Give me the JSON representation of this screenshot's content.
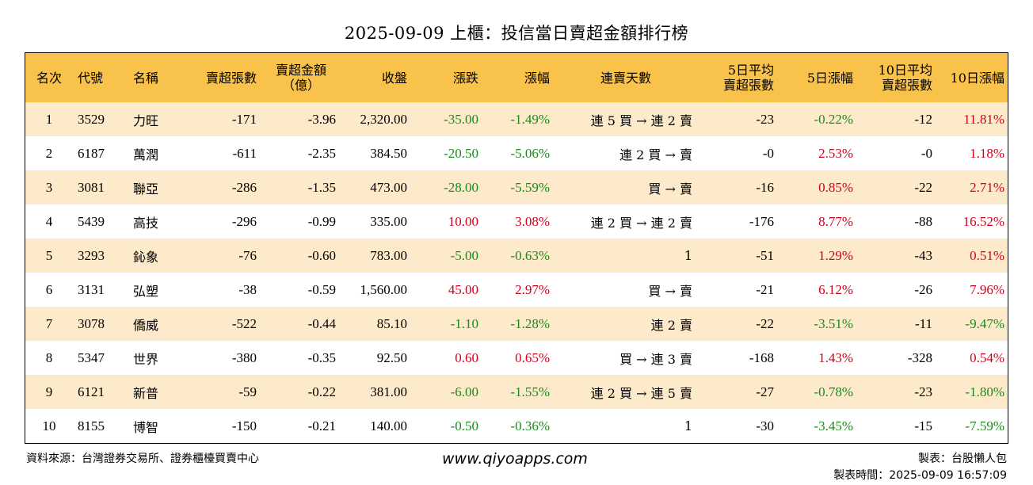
{
  "title": "2025-09-09 上櫃：投信當日賣超金額排行榜",
  "headers": {
    "rank": "名次",
    "code": "代號",
    "name": "名稱",
    "sell_lots": "賣超張數",
    "sell_amount_l1": "賣超金額",
    "sell_amount_l2": "（億）",
    "close": "收盤",
    "change": "漲跌",
    "pct": "漲幅",
    "streak": "連賣天數",
    "avg5_l1": "5日平均",
    "avg5_l2": "賣超張數",
    "pct5": "5日漲幅",
    "avg10_l1": "10日平均",
    "avg10_l2": "賣超張數",
    "pct10": "10日漲幅"
  },
  "rows": [
    {
      "rank": "1",
      "code": "3529",
      "name": "力旺",
      "lots": "-171",
      "amount": "-3.96",
      "close": "2,320.00",
      "change": "-35.00",
      "pct": "-1.49%",
      "streak": "連 5 買 → 連 2 賣",
      "avg5": "-23",
      "pct5": "-0.22%",
      "avg10": "-12",
      "pct10": "11.81%"
    },
    {
      "rank": "2",
      "code": "6187",
      "name": "萬潤",
      "lots": "-611",
      "amount": "-2.35",
      "close": "384.50",
      "change": "-20.50",
      "pct": "-5.06%",
      "streak": "連 2 買 → 賣",
      "avg5": "-0",
      "pct5": "2.53%",
      "avg10": "-0",
      "pct10": "1.18%"
    },
    {
      "rank": "3",
      "code": "3081",
      "name": "聯亞",
      "lots": "-286",
      "amount": "-1.35",
      "close": "473.00",
      "change": "-28.00",
      "pct": "-5.59%",
      "streak": "買 → 賣",
      "avg5": "-16",
      "pct5": "0.85%",
      "avg10": "-22",
      "pct10": "2.71%"
    },
    {
      "rank": "4",
      "code": "5439",
      "name": "高技",
      "lots": "-296",
      "amount": "-0.99",
      "close": "335.00",
      "change": "10.00",
      "pct": "3.08%",
      "streak": "連 2 買 → 連 2 賣",
      "avg5": "-176",
      "pct5": "8.77%",
      "avg10": "-88",
      "pct10": "16.52%"
    },
    {
      "rank": "5",
      "code": "3293",
      "name": "鈊象",
      "lots": "-76",
      "amount": "-0.60",
      "close": "783.00",
      "change": "-5.00",
      "pct": "-0.63%",
      "streak": "1",
      "avg5": "-51",
      "pct5": "1.29%",
      "avg10": "-43",
      "pct10": "0.51%"
    },
    {
      "rank": "6",
      "code": "3131",
      "name": "弘塑",
      "lots": "-38",
      "amount": "-0.59",
      "close": "1,560.00",
      "change": "45.00",
      "pct": "2.97%",
      "streak": "買 → 賣",
      "avg5": "-21",
      "pct5": "6.12%",
      "avg10": "-26",
      "pct10": "7.96%"
    },
    {
      "rank": "7",
      "code": "3078",
      "name": "僑威",
      "lots": "-522",
      "amount": "-0.44",
      "close": "85.10",
      "change": "-1.10",
      "pct": "-1.28%",
      "streak": "連 2 賣",
      "avg5": "-22",
      "pct5": "-3.51%",
      "avg10": "-11",
      "pct10": "-9.47%"
    },
    {
      "rank": "8",
      "code": "5347",
      "name": "世界",
      "lots": "-380",
      "amount": "-0.35",
      "close": "92.50",
      "change": "0.60",
      "pct": "0.65%",
      "streak": "買 → 連 3 賣",
      "avg5": "-168",
      "pct5": "1.43%",
      "avg10": "-328",
      "pct10": "0.54%"
    },
    {
      "rank": "9",
      "code": "6121",
      "name": "新普",
      "lots": "-59",
      "amount": "-0.22",
      "close": "381.00",
      "change": "-6.00",
      "pct": "-1.55%",
      "streak": "連 2 買 → 連 5 賣",
      "avg5": "-27",
      "pct5": "-0.78%",
      "avg10": "-23",
      "pct10": "-1.80%"
    },
    {
      "rank": "10",
      "code": "8155",
      "name": "博智",
      "lots": "-150",
      "amount": "-0.21",
      "close": "140.00",
      "change": "-0.50",
      "pct": "-0.36%",
      "streak": "1",
      "avg5": "-30",
      "pct5": "-3.45%",
      "avg10": "-15",
      "pct10": "-7.59%"
    }
  ],
  "colors": {
    "up": "#d0021b",
    "down": "#1a8a1a",
    "header_bg": "#f9c24a",
    "stripe": "#fdeacb"
  },
  "footer": {
    "source": "資料來源：台灣證券交易所、證券櫃檯買賣中心",
    "website": "www.qiyoapps.com",
    "maker": "製表：台股懶人包",
    "made_time": "製表時間：2025-09-09 16:57:09"
  }
}
